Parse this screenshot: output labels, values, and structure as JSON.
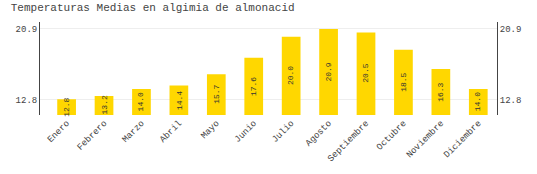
{
  "chart_data": {
    "type": "bar",
    "title": "Temperaturas Medias en algimia de almonacid",
    "categories": [
      "Enero",
      "Febrero",
      "Marzo",
      "Abril",
      "Mayo",
      "Junio",
      "Julio",
      "Agosto",
      "Septiembre",
      "Octubre",
      "Noviembre",
      "Diciembre"
    ],
    "values": [
      12.8,
      13.2,
      14.0,
      14.4,
      15.7,
      17.6,
      20.0,
      20.9,
      20.5,
      18.5,
      16.3,
      14.0
    ],
    "value_labels": [
      "12.8",
      "13.2",
      "14.0",
      "14.4",
      "15.7",
      "17.6",
      "20.0",
      "20.9",
      "20.5",
      "18.5",
      "16.3",
      "14.0"
    ],
    "color": "#FFD700",
    "ylim": [
      11.0,
      21.7
    ],
    "yticks": [
      12.8,
      20.9
    ],
    "grid": true,
    "data_labels": true
  }
}
